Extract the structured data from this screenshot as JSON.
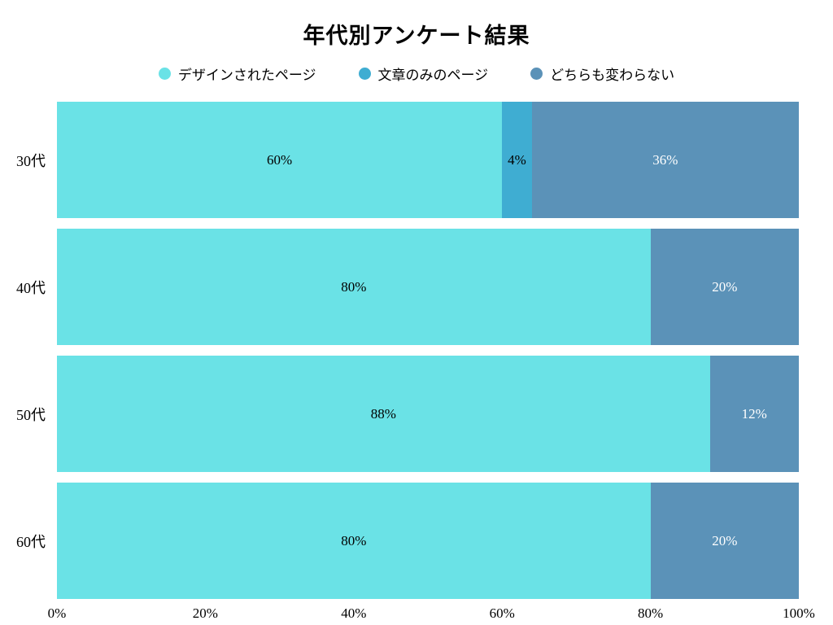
{
  "chart_data": {
    "type": "bar",
    "orientation": "horizontal",
    "stacked": true,
    "title": "年代別アンケート結果",
    "categories": [
      "30代",
      "40代",
      "50代",
      "60代"
    ],
    "series": [
      {
        "name": "デザインされたページ",
        "color": "#6ae2e6",
        "label_color": "#000000",
        "values": [
          60,
          80,
          88,
          80
        ]
      },
      {
        "name": "文章のみのページ",
        "color": "#3fadd2",
        "label_color": "#000000",
        "values": [
          4,
          0,
          0,
          0
        ]
      },
      {
        "name": "どちらも変わらない",
        "color": "#5b92b8",
        "label_color": "#ffffff",
        "values": [
          36,
          20,
          12,
          20
        ]
      }
    ],
    "value_suffix": "%",
    "x_ticks": [
      "0%",
      "20%",
      "40%",
      "60%",
      "80%",
      "100%"
    ],
    "xlim": [
      0,
      100
    ],
    "legend_position": "top",
    "grid": false
  }
}
